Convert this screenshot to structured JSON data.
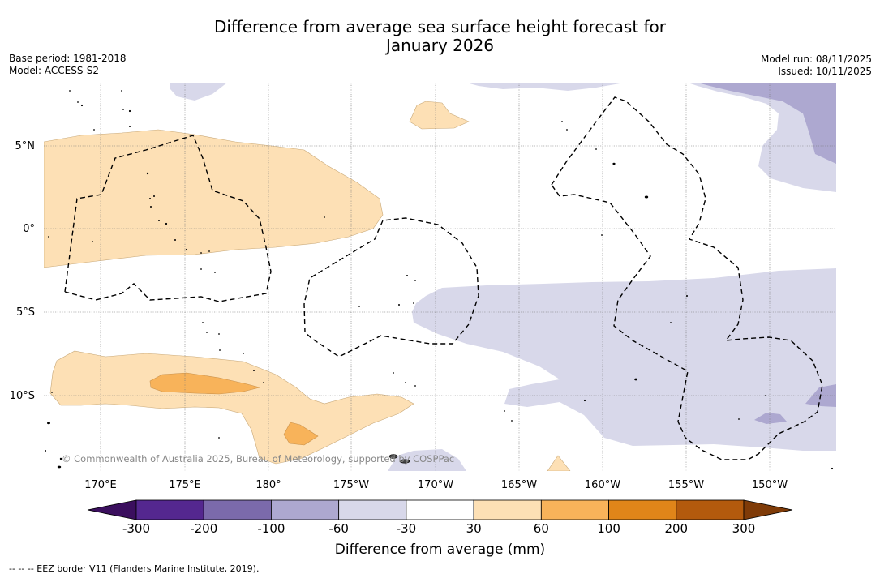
{
  "title": {
    "line1": "Difference from average sea surface height forecast for",
    "line2": "January 2026"
  },
  "meta_left": {
    "base_period": "Base period: 1981-2018",
    "model": "Model: ACCESS-S2"
  },
  "meta_right": {
    "model_run": "Model run: 08/11/2025",
    "issued": "Issued: 10/11/2025"
  },
  "map": {
    "lat_labels": [
      "5°N",
      "0°",
      "5°S",
      "10°S"
    ],
    "lon_labels": [
      "170°E",
      "175°E",
      "180°",
      "175°W",
      "170°W",
      "165°W",
      "160°W",
      "155°W",
      "150°W"
    ],
    "copyright": "© Commonwealth of Australia 2025, Bureau of Meteorology, supported by COSPPac"
  },
  "colorbar": {
    "tick_labels": [
      "-300",
      "-200",
      "-100",
      "-60",
      "-30",
      "30",
      "60",
      "100",
      "200",
      "300"
    ],
    "colors": [
      "#54278f",
      "#7b6aab",
      "#ada8d0",
      "#d8d8ea",
      "#ffffff",
      "#fde0b5",
      "#f8b35a",
      "#e08519",
      "#b35a0d"
    ],
    "under_color": "#3b0f5e",
    "over_color": "#7f3b08",
    "title": "Difference from average (mm)"
  },
  "footnote": "-- -- -- EEZ border V11 (Flanders Marine Institute, 2019)."
}
